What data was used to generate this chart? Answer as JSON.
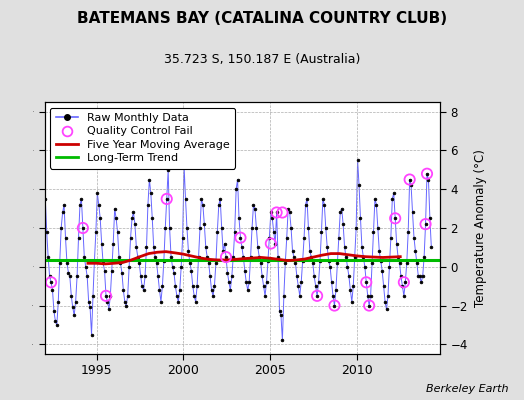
{
  "title": "BATEMANS BAY (CATALINA COUNTRY CLUB)",
  "subtitle": "35.723 S, 150.187 E (Australia)",
  "ylabel": "Temperature Anomaly (°C)",
  "attribution": "Berkeley Earth",
  "background_color": "#e0e0e0",
  "plot_bg_color": "#ffffff",
  "ylim": [
    -4.5,
    8.5
  ],
  "yticks": [
    -4,
    -2,
    0,
    2,
    4,
    6,
    8
  ],
  "xlim": [
    1992.0,
    2014.8
  ],
  "xticks": [
    1995,
    2000,
    2005,
    2010
  ],
  "long_term_trend_y": 0.35,
  "raw_times": [
    1992.042,
    1992.125,
    1992.208,
    1992.292,
    1992.375,
    1992.458,
    1992.542,
    1992.625,
    1992.708,
    1992.792,
    1992.875,
    1992.958,
    1993.042,
    1993.125,
    1993.208,
    1993.292,
    1993.375,
    1993.458,
    1993.542,
    1993.625,
    1993.708,
    1993.792,
    1993.875,
    1993.958,
    1994.042,
    1994.125,
    1994.208,
    1994.292,
    1994.375,
    1994.458,
    1994.542,
    1994.625,
    1994.708,
    1994.792,
    1994.875,
    1994.958,
    1995.042,
    1995.125,
    1995.208,
    1995.292,
    1995.375,
    1995.458,
    1995.542,
    1995.625,
    1995.708,
    1995.792,
    1995.875,
    1995.958,
    1996.042,
    1996.125,
    1996.208,
    1996.292,
    1996.375,
    1996.458,
    1996.542,
    1996.625,
    1996.708,
    1996.792,
    1996.875,
    1996.958,
    1997.042,
    1997.125,
    1997.208,
    1997.292,
    1997.375,
    1997.458,
    1997.542,
    1997.625,
    1997.708,
    1997.792,
    1997.875,
    1997.958,
    1998.042,
    1998.125,
    1998.208,
    1998.292,
    1998.375,
    1998.458,
    1998.542,
    1998.625,
    1998.708,
    1998.792,
    1998.875,
    1998.958,
    1999.042,
    1999.125,
    1999.208,
    1999.292,
    1999.375,
    1999.458,
    1999.542,
    1999.625,
    1999.708,
    1999.792,
    1999.875,
    1999.958,
    2000.042,
    2000.125,
    2000.208,
    2000.292,
    2000.375,
    2000.458,
    2000.542,
    2000.625,
    2000.708,
    2000.792,
    2000.875,
    2000.958,
    2001.042,
    2001.125,
    2001.208,
    2001.292,
    2001.375,
    2001.458,
    2001.542,
    2001.625,
    2001.708,
    2001.792,
    2001.875,
    2001.958,
    2002.042,
    2002.125,
    2002.208,
    2002.292,
    2002.375,
    2002.458,
    2002.542,
    2002.625,
    2002.708,
    2002.792,
    2002.875,
    2002.958,
    2003.042,
    2003.125,
    2003.208,
    2003.292,
    2003.375,
    2003.458,
    2003.542,
    2003.625,
    2003.708,
    2003.792,
    2003.875,
    2003.958,
    2004.042,
    2004.125,
    2004.208,
    2004.292,
    2004.375,
    2004.458,
    2004.542,
    2004.625,
    2004.708,
    2004.792,
    2004.875,
    2004.958,
    2005.042,
    2005.125,
    2005.208,
    2005.292,
    2005.375,
    2005.458,
    2005.542,
    2005.625,
    2005.708,
    2005.792,
    2005.875,
    2005.958,
    2006.042,
    2006.125,
    2006.208,
    2006.292,
    2006.375,
    2006.458,
    2006.542,
    2006.625,
    2006.708,
    2006.792,
    2006.875,
    2006.958,
    2007.042,
    2007.125,
    2007.208,
    2007.292,
    2007.375,
    2007.458,
    2007.542,
    2007.625,
    2007.708,
    2007.792,
    2007.875,
    2007.958,
    2008.042,
    2008.125,
    2008.208,
    2008.292,
    2008.375,
    2008.458,
    2008.542,
    2008.625,
    2008.708,
    2008.792,
    2008.875,
    2008.958,
    2009.042,
    2009.125,
    2009.208,
    2009.292,
    2009.375,
    2009.458,
    2009.542,
    2009.625,
    2009.708,
    2009.792,
    2009.875,
    2009.958,
    2010.042,
    2010.125,
    2010.208,
    2010.292,
    2010.375,
    2010.458,
    2010.542,
    2010.625,
    2010.708,
    2010.792,
    2010.875,
    2010.958,
    2011.042,
    2011.125,
    2011.208,
    2011.292,
    2011.375,
    2011.458,
    2011.542,
    2011.625,
    2011.708,
    2011.792,
    2011.875,
    2011.958,
    2012.042,
    2012.125,
    2012.208,
    2012.292,
    2012.375,
    2012.458,
    2012.542,
    2012.625,
    2012.708,
    2012.792,
    2012.875,
    2012.958,
    2013.042,
    2013.125,
    2013.208,
    2013.292,
    2013.375,
    2013.458,
    2013.542,
    2013.625,
    2013.708,
    2013.792,
    2013.875,
    2013.958,
    2014.042,
    2014.125,
    2014.208,
    2014.292
  ],
  "raw_values": [
    3.5,
    1.8,
    0.5,
    -0.5,
    -0.8,
    -1.2,
    -2.3,
    -2.8,
    -3.0,
    -1.8,
    0.2,
    2.0,
    2.8,
    3.2,
    1.5,
    0.2,
    -0.3,
    -0.5,
    -1.5,
    -2.1,
    -2.5,
    -1.8,
    -0.5,
    1.5,
    3.2,
    3.5,
    2.0,
    0.5,
    0.0,
    -0.5,
    -1.8,
    -2.1,
    -3.5,
    -1.5,
    0.3,
    1.8,
    3.8,
    3.2,
    2.5,
    1.2,
    0.2,
    -0.2,
    -1.5,
    -1.8,
    -2.2,
    -1.5,
    -0.2,
    1.2,
    3.0,
    2.5,
    1.8,
    0.5,
    0.2,
    -0.3,
    -1.2,
    -1.8,
    -2.0,
    -1.5,
    0.0,
    1.5,
    2.5,
    2.8,
    2.2,
    1.0,
    0.5,
    0.2,
    -0.5,
    -1.0,
    -1.2,
    -0.5,
    1.0,
    3.2,
    4.5,
    3.8,
    2.5,
    1.0,
    0.5,
    0.2,
    -0.5,
    -1.2,
    -1.8,
    -1.0,
    0.3,
    2.0,
    3.5,
    5.0,
    2.0,
    0.5,
    0.0,
    -0.3,
    -1.0,
    -1.5,
    -1.8,
    -1.2,
    0.0,
    1.5,
    5.2,
    3.5,
    2.0,
    0.8,
    0.2,
    -0.2,
    -1.0,
    -1.5,
    -1.8,
    -1.0,
    0.5,
    2.0,
    3.5,
    3.2,
    2.2,
    1.0,
    0.5,
    0.2,
    -0.5,
    -1.2,
    -1.5,
    -1.0,
    0.2,
    1.8,
    3.2,
    3.5,
    2.0,
    0.8,
    1.2,
    0.5,
    -0.3,
    -0.8,
    -1.2,
    -0.5,
    0.5,
    1.8,
    4.0,
    4.5,
    2.5,
    1.5,
    1.0,
    0.5,
    -0.2,
    -0.8,
    -1.2,
    -0.8,
    0.5,
    2.0,
    3.2,
    3.0,
    2.0,
    1.0,
    0.5,
    0.2,
    -0.5,
    -1.0,
    -1.5,
    -0.8,
    0.3,
    1.5,
    2.8,
    2.5,
    1.8,
    1.2,
    2.8,
    0.5,
    -2.3,
    -2.5,
    -3.8,
    -1.5,
    0.2,
    1.5,
    3.0,
    2.8,
    2.0,
    0.8,
    0.5,
    0.2,
    -0.5,
    -1.0,
    -1.5,
    -0.8,
    0.3,
    1.5,
    3.2,
    3.5,
    2.0,
    0.8,
    0.5,
    0.2,
    -0.5,
    -1.0,
    -1.5,
    -0.8,
    0.3,
    1.8,
    3.5,
    3.2,
    2.0,
    1.0,
    0.3,
    0.0,
    -0.8,
    -1.5,
    -2.0,
    -1.2,
    0.2,
    1.5,
    2.8,
    3.0,
    2.2,
    1.0,
    0.5,
    0.0,
    -0.5,
    -1.2,
    -1.8,
    -1.0,
    0.5,
    2.0,
    5.5,
    4.2,
    2.5,
    1.0,
    0.5,
    0.0,
    -0.8,
    -1.5,
    -2.0,
    -1.5,
    0.2,
    1.8,
    3.5,
    3.2,
    2.0,
    0.8,
    0.3,
    -0.2,
    -1.0,
    -1.8,
    -2.2,
    -1.5,
    0.0,
    1.5,
    3.5,
    3.8,
    2.5,
    1.2,
    0.5,
    0.2,
    -0.5,
    -1.0,
    -1.5,
    -0.8,
    0.2,
    1.8,
    4.5,
    4.2,
    2.8,
    1.5,
    0.8,
    0.2,
    -0.5,
    -0.5,
    -0.8,
    -0.5,
    0.5,
    2.2,
    4.8,
    4.5,
    2.5,
    1.0
  ],
  "qc_fail_times": [
    1992.375,
    1994.208,
    1995.542,
    1999.042,
    2002.458,
    2003.292,
    2005.042,
    2005.375,
    2005.708,
    2007.708,
    2008.708,
    2010.542,
    2010.708,
    2012.208,
    2012.708,
    2013.042,
    2013.958,
    2014.042
  ],
  "qc_fail_values": [
    -0.8,
    2.0,
    -1.5,
    3.5,
    0.5,
    1.5,
    1.2,
    2.8,
    2.8,
    -1.5,
    -2.0,
    -0.8,
    -2.0,
    2.5,
    -0.8,
    4.5,
    2.2,
    4.8
  ],
  "moving_avg_times": [
    1994.5,
    1995.0,
    1995.5,
    1996.0,
    1996.5,
    1997.0,
    1997.5,
    1998.0,
    1998.5,
    1999.0,
    1999.5,
    2000.0,
    2000.5,
    2001.0,
    2001.5,
    2002.0,
    2002.5,
    2003.0,
    2003.5,
    2004.0,
    2004.5,
    2005.0,
    2005.5,
    2006.0,
    2006.5,
    2007.0,
    2007.5,
    2008.0,
    2008.5,
    2009.0,
    2009.5,
    2010.0,
    2010.5,
    2011.0,
    2011.5,
    2012.0,
    2012.5
  ],
  "moving_avg_values": [
    0.18,
    0.18,
    0.15,
    0.18,
    0.22,
    0.35,
    0.52,
    0.68,
    0.75,
    0.78,
    0.72,
    0.65,
    0.55,
    0.45,
    0.38,
    0.35,
    0.35,
    0.38,
    0.42,
    0.45,
    0.48,
    0.44,
    0.38,
    0.32,
    0.35,
    0.4,
    0.5,
    0.6,
    0.68,
    0.68,
    0.62,
    0.56,
    0.52,
    0.5,
    0.48,
    0.5,
    0.52
  ],
  "line_color": "#6666ff",
  "marker_color": "#000000",
  "qc_color": "#ff44ff",
  "moving_avg_color": "#cc0000",
  "trend_color": "#00bb00",
  "legend_fontsize": 8,
  "title_fontsize": 11,
  "subtitle_fontsize": 9
}
